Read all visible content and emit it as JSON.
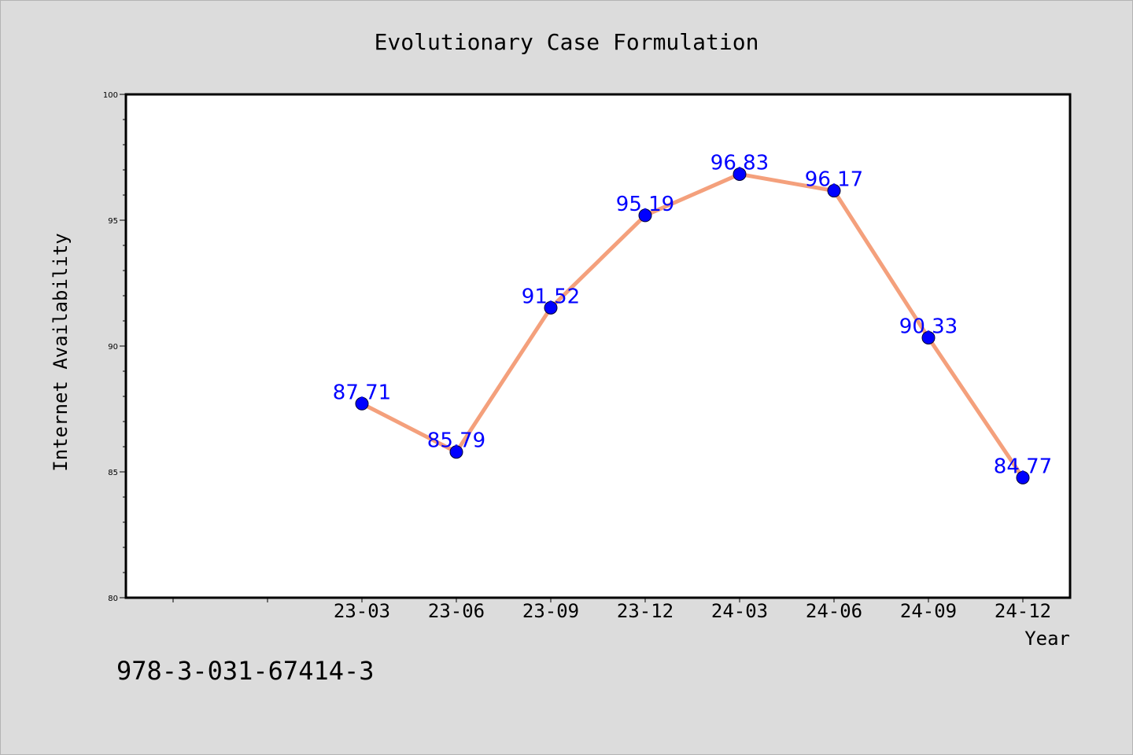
{
  "chart_data": {
    "type": "line",
    "title": "Evolutionary Case Formulation",
    "xlabel": "Year",
    "ylabel": "Internet Availability",
    "categories": [
      "23-03",
      "23-06",
      "23-09",
      "23-12",
      "24-03",
      "24-06",
      "24-09",
      "24-12"
    ],
    "series": [
      {
        "values": [
          87.71,
          85.79,
          91.52,
          95.19,
          96.83,
          96.17,
          90.33,
          84.77
        ],
        "data_labels": [
          "87.71",
          "85.79",
          "91.52",
          "95.19",
          "96.83",
          "96.17",
          "90.33",
          "84.77"
        ],
        "line_color": "#f4a07c",
        "marker_color": "#0000ff"
      }
    ],
    "ylim": [
      80,
      100
    ],
    "y_ticks": [
      "80",
      "85",
      "90",
      "95",
      "100"
    ],
    "x_slots": 10,
    "grid": false,
    "legend": "none"
  },
  "footnote": "978-3-031-67414-3",
  "colors": {
    "background": "#dcdcdc",
    "plot_background": "#ffffff",
    "line": "#f4a07c",
    "marker": "#0000ff",
    "data_label": "#0000ff"
  }
}
